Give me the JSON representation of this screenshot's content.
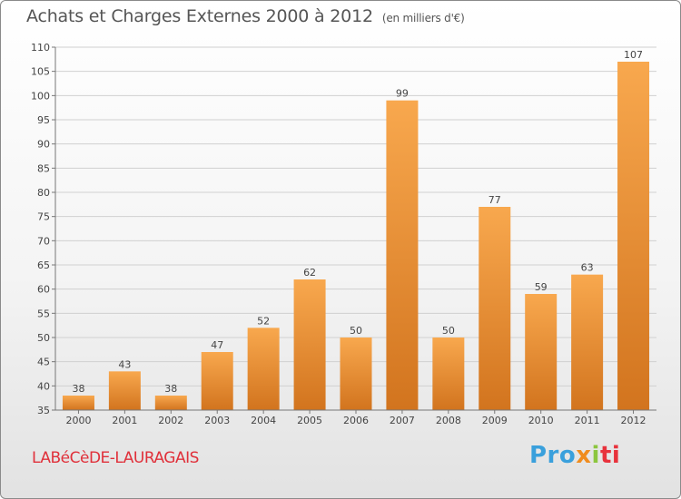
{
  "title": "Achats et Charges Externes 2000 à 2012",
  "subtitle": "(en milliers d'€)",
  "locality": "LABéCèDE-LAURAGAIS",
  "logo": {
    "parts": [
      "Pro",
      "x",
      "i",
      "ti"
    ],
    "colors": [
      "#3aa0dc",
      "#f08c1e",
      "#8cc63f",
      "#e8323c"
    ]
  },
  "colors": {
    "bar_light": "#f8a84e",
    "bar_dark": "#d2741e",
    "grid": "#d0d0d0",
    "axis_text": "#444444",
    "locality": "#e0303a"
  },
  "chart_data": {
    "type": "bar",
    "categories": [
      "2000",
      "2001",
      "2002",
      "2003",
      "2004",
      "2005",
      "2006",
      "2007",
      "2008",
      "2009",
      "2010",
      "2011",
      "2012"
    ],
    "values": [
      38,
      43,
      38,
      47,
      52,
      62,
      50,
      99,
      50,
      77,
      59,
      63,
      107
    ],
    "ylim": [
      35,
      110
    ],
    "yticks": [
      35,
      40,
      45,
      50,
      55,
      60,
      65,
      70,
      75,
      80,
      85,
      90,
      95,
      100,
      105,
      110
    ],
    "grid": true,
    "legend": "none"
  }
}
